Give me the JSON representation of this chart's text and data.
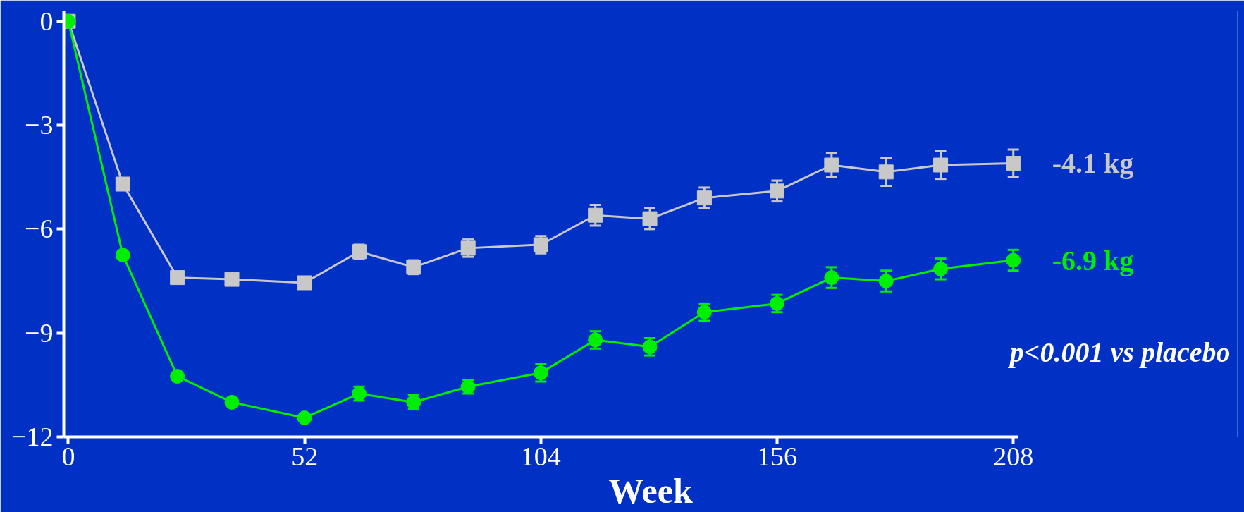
{
  "chart_data": {
    "type": "line",
    "xlabel": "Week",
    "x": [
      0,
      12,
      24,
      36,
      52,
      64,
      76,
      88,
      104,
      116,
      128,
      140,
      156,
      168,
      180,
      192,
      208
    ],
    "series": [
      {
        "color": "#c8c8c8",
        "marker": "square",
        "values": [
          0,
          -4.7,
          -7.4,
          -7.45,
          -7.55,
          -6.65,
          -7.1,
          -6.55,
          -6.45,
          -5.6,
          -5.7,
          -5.1,
          -4.9,
          -4.15,
          -4.35,
          -4.15,
          -4.1
        ],
        "errors": [
          null,
          null,
          null,
          null,
          null,
          0.2,
          0.2,
          0.25,
          0.25,
          0.3,
          0.3,
          0.3,
          0.3,
          0.35,
          0.4,
          0.4,
          0.4
        ]
      },
      {
        "color": "#00ee00",
        "marker": "circle",
        "values": [
          0,
          -6.75,
          -10.25,
          -11.0,
          -11.45,
          -10.75,
          -11.0,
          -10.55,
          -10.15,
          -9.2,
          -9.4,
          -8.4,
          -8.15,
          -7.4,
          -7.5,
          -7.15,
          -6.9
        ],
        "errors": [
          null,
          null,
          null,
          null,
          null,
          0.2,
          0.2,
          0.2,
          0.25,
          0.25,
          0.25,
          0.25,
          0.25,
          0.3,
          0.3,
          0.3,
          0.3
        ]
      }
    ],
    "xlim": [
      -1,
      209
    ],
    "ylim": [
      -12,
      0.3
    ],
    "xticks": [
      0,
      52,
      104,
      156,
      208
    ],
    "yticks": [
      0,
      -3,
      -6,
      -9,
      -12
    ],
    "grid": false,
    "line_style": "solid",
    "annotations": [
      {
        "text": "-4.1 kg",
        "x": 208,
        "y": -4.1
      },
      {
        "text": "-6.9 kg",
        "x": 208,
        "y": -6.9
      },
      "p<0.001 vs placebo"
    ]
  }
}
